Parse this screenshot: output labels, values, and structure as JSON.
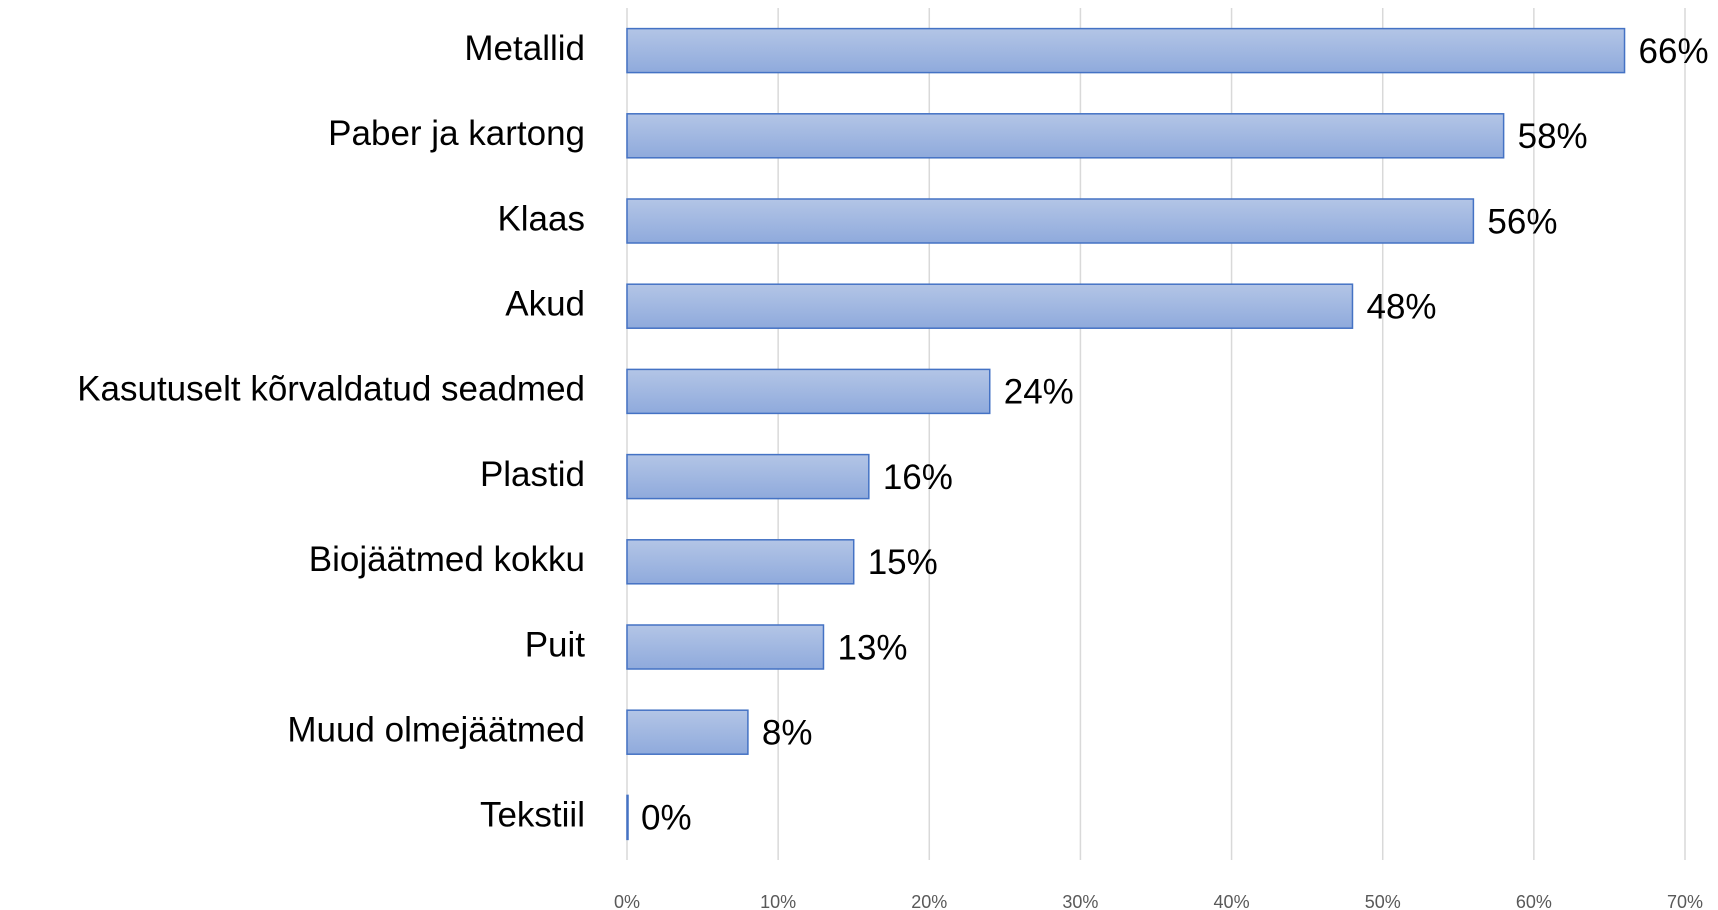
{
  "chart_data": {
    "type": "bar",
    "orientation": "horizontal",
    "categories": [
      "Metallid",
      "Paber ja kartong",
      "Klaas",
      "Akud",
      "Kasutuselt kõrvaldatud seadmed",
      "Plastid",
      "Biojäätmed kokku",
      "Puit",
      "Muud olmejäätmed",
      "Tekstiil"
    ],
    "values": [
      66,
      58,
      56,
      48,
      24,
      16,
      15,
      13,
      8,
      0
    ],
    "value_labels": [
      "66%",
      "58%",
      "56%",
      "48%",
      "24%",
      "16%",
      "15%",
      "13%",
      "8%",
      "0%"
    ],
    "color": "#4472c4",
    "xlim": [
      0,
      70
    ],
    "xticks": [
      {
        "value": 0,
        "label": "0%"
      },
      {
        "value": 10,
        "label": "10%"
      },
      {
        "value": 20,
        "label": "20%"
      },
      {
        "value": 30,
        "label": "30%"
      },
      {
        "value": 40,
        "label": "40%"
      },
      {
        "value": 50,
        "label": "50%"
      },
      {
        "value": 60,
        "label": "60%"
      },
      {
        "value": 70,
        "label": "70%"
      }
    ],
    "grid": true
  }
}
